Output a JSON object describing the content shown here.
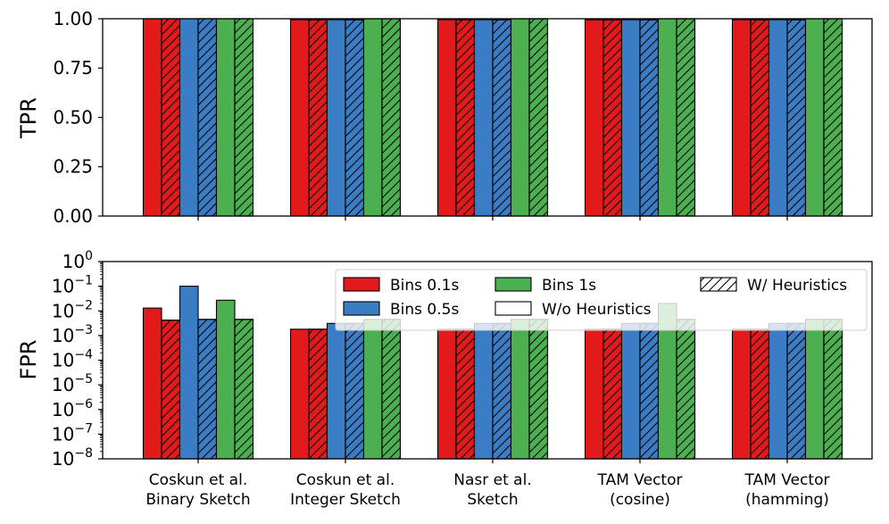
{
  "colors": {
    "Bins 0.1s": "#e31a1c",
    "Bins 0.5s": "#3a7dc4",
    "Bins 1s": "#4caf50",
    "edge": "#000000",
    "background": "#ffffff"
  },
  "legend": {
    "entries": [
      "Bins 0.1s",
      "Bins 0.5s",
      "Bins 1s",
      "W/o Heuristics",
      "W/ Heuristics"
    ]
  },
  "chart_data": [
    {
      "type": "bar",
      "name": "tpr",
      "ylabel": "TPR",
      "xlabel": "",
      "categories": [
        "Coskun et al.\nBinary Sketch",
        "Coskun et al.\nInteger Sketch",
        "Nasr et al.\nSketch",
        "TAM Vector\n(cosine)",
        "TAM Vector\n(hamming)"
      ],
      "ylim": [
        0,
        1
      ],
      "yticks": [
        "0.00",
        "0.25",
        "0.50",
        "0.75",
        "1.00"
      ],
      "yscale": "linear",
      "grid": false,
      "series": [
        {
          "name": "Bins 0.1s",
          "heuristics": false,
          "values": [
            1.0,
            0.995,
            0.995,
            0.995,
            0.995
          ]
        },
        {
          "name": "Bins 0.1s",
          "heuristics": true,
          "values": [
            1.0,
            0.995,
            0.995,
            0.995,
            0.995
          ]
        },
        {
          "name": "Bins 0.5s",
          "heuristics": false,
          "values": [
            1.0,
            0.995,
            0.995,
            0.995,
            0.995
          ]
        },
        {
          "name": "Bins 0.5s",
          "heuristics": true,
          "values": [
            1.0,
            0.995,
            0.995,
            0.995,
            0.995
          ]
        },
        {
          "name": "Bins 1s",
          "heuristics": false,
          "values": [
            1.0,
            1.0,
            1.0,
            1.0,
            1.0
          ]
        },
        {
          "name": "Bins 1s",
          "heuristics": true,
          "values": [
            1.0,
            1.0,
            1.0,
            1.0,
            1.0
          ]
        }
      ]
    },
    {
      "type": "bar",
      "name": "fpr",
      "ylabel": "FPR",
      "xlabel": "",
      "categories": [
        "Coskun et al.\nBinary Sketch",
        "Coskun et al.\nInteger Sketch",
        "Nasr et al.\nSketch",
        "TAM Vector\n(cosine)",
        "TAM Vector\n(hamming)"
      ],
      "ylim": [
        1e-08,
        1
      ],
      "yscale": "log",
      "yticks": [
        {
          "base": "10",
          "exp": "0"
        },
        {
          "base": "10",
          "exp": "−1"
        },
        {
          "base": "10",
          "exp": "−2"
        },
        {
          "base": "10",
          "exp": "−3"
        },
        {
          "base": "10",
          "exp": "−4"
        },
        {
          "base": "10",
          "exp": "−5"
        },
        {
          "base": "10",
          "exp": "−6"
        },
        {
          "base": "10",
          "exp": "−7"
        },
        {
          "base": "10",
          "exp": "−8"
        }
      ],
      "legend_position": "top-right",
      "grid": false,
      "series": [
        {
          "name": "Bins 0.1s",
          "heuristics": false,
          "values": [
            0.013,
            0.0018,
            0.0018,
            0.0018,
            0.0018
          ]
        },
        {
          "name": "Bins 0.1s",
          "heuristics": true,
          "values": [
            0.0042,
            0.0018,
            0.0018,
            0.0018,
            0.0018
          ]
        },
        {
          "name": "Bins 0.5s",
          "heuristics": false,
          "values": [
            0.1,
            0.0031,
            0.0031,
            0.0031,
            0.0031
          ]
        },
        {
          "name": "Bins 0.5s",
          "heuristics": true,
          "values": [
            0.0045,
            0.0031,
            0.0031,
            0.0031,
            0.0031
          ]
        },
        {
          "name": "Bins 1s",
          "heuristics": false,
          "values": [
            0.027,
            0.0045,
            0.0045,
            0.02,
            0.0045
          ]
        },
        {
          "name": "Bins 1s",
          "heuristics": true,
          "values": [
            0.0045,
            0.0045,
            0.0045,
            0.0045,
            0.0045
          ]
        }
      ]
    }
  ]
}
